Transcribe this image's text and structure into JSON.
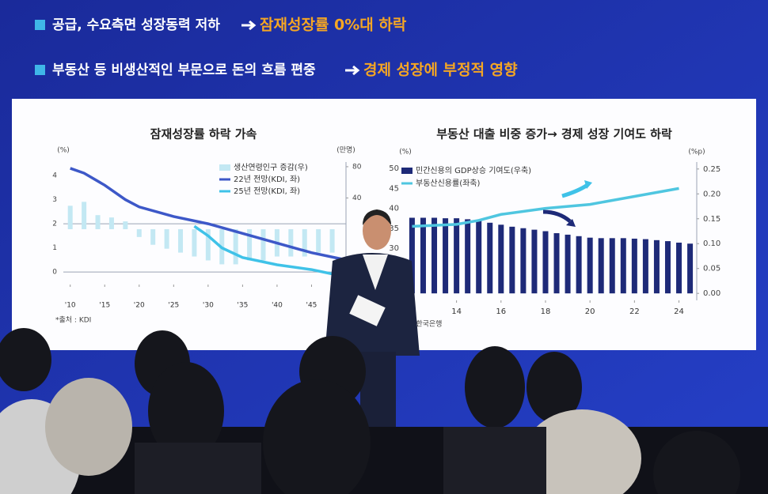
{
  "bullets": [
    {
      "text": "공급, 수요측면 성장동력 저하",
      "highlight": "잠재성장률 0%대 하락"
    },
    {
      "text": "부동산 등 비생산적인 부문으로 돈의 흐름 편중",
      "highlight": "경제 성장에 부정적 영향"
    }
  ],
  "chart_data": [
    {
      "type": "combo",
      "title": "잠재성장률 하락 가속",
      "ylabel": "(%)",
      "y2label": "(만명)",
      "source": "*출처 : KDI",
      "xlim": [
        2009,
        2050
      ],
      "xticks": [
        {
          "value": 2010,
          "label": "'10"
        },
        {
          "value": 2015,
          "label": "'15"
        },
        {
          "value": 2020,
          "label": "'20"
        },
        {
          "value": 2025,
          "label": "'25"
        },
        {
          "value": 2030,
          "label": "'30"
        },
        {
          "value": 2035,
          "label": "'35"
        },
        {
          "value": 2040,
          "label": "'40"
        },
        {
          "value": 2045,
          "label": "'45"
        }
      ],
      "ylim": [
        -0.52,
        4.56
      ],
      "yticks": [
        0,
        1,
        2,
        3,
        4
      ],
      "y2lim": [
        -70.9,
        86
      ],
      "y2ticks": [
        40,
        80
      ],
      "series": [
        {
          "name": "생산연령인구 증감(우)",
          "type": "bar",
          "axis": "y2",
          "color": "#c3e8f3",
          "x": [
            2010,
            2012,
            2014,
            2016,
            2018,
            2020,
            2022,
            2024,
            2026,
            2028,
            2030,
            2032,
            2034,
            2036,
            2038,
            2040,
            2042,
            2044,
            2046,
            2048
          ],
          "values": [
            30,
            35,
            18,
            15,
            10,
            -10,
            -20,
            -25,
            -30,
            -35,
            -40,
            -45,
            -45,
            -40,
            -40,
            -35,
            -35,
            -35,
            -30,
            -30
          ]
        },
        {
          "name": "22년 전망(KDI, 좌)",
          "type": "line",
          "color": "#3d58c8",
          "x": [
            2010,
            2012,
            2015,
            2018,
            2020,
            2025,
            2030,
            2035,
            2040,
            2045,
            2050
          ],
          "values": [
            4.3,
            4.1,
            3.6,
            3.0,
            2.7,
            2.3,
            2.0,
            1.6,
            1.2,
            0.8,
            0.5
          ]
        },
        {
          "name": "25년 전망(KDI, 좌)",
          "type": "line",
          "color": "#3fc2e8",
          "x": [
            2028,
            2030,
            2032,
            2035,
            2040,
            2045,
            2050
          ],
          "values": [
            1.9,
            1.5,
            1.0,
            0.6,
            0.3,
            0.1,
            -0.2
          ]
        }
      ]
    },
    {
      "type": "combo",
      "title": "부동산 대출 비중 증가→ 경제 성장 기여도 하락",
      "ylabel": "(%)",
      "y2label": "(%p)",
      "source": "출처 : 한국은행",
      "xlim": [
        2011.7,
        2024.8
      ],
      "xticks": [
        {
          "value": 2014,
          "label": "14"
        },
        {
          "value": 2016,
          "label": "16"
        },
        {
          "value": 2018,
          "label": "18"
        },
        {
          "value": 2020,
          "label": "20"
        },
        {
          "value": 2022,
          "label": "22"
        },
        {
          "value": 2024,
          "label": "24"
        }
      ],
      "ylim": [
        17.0,
        51.6
      ],
      "yticks": [
        30,
        35,
        40,
        45,
        50
      ],
      "y2lim": [
        -0.014,
        0.264
      ],
      "y2ticks": [
        {
          "value": 0,
          "label": "0.00"
        },
        {
          "value": 0.05,
          "label": "0.05"
        },
        {
          "value": 0.1,
          "label": "0.10"
        },
        {
          "value": 0.15,
          "label": "0.15"
        },
        {
          "value": 0.2,
          "label": "0.20"
        },
        {
          "value": 0.25,
          "label": "0.25"
        }
      ],
      "series": [
        {
          "name": "민간신용의 GDP상승 기여도(우축)",
          "type": "bar",
          "axis": "y2",
          "color": "#1e2a78",
          "x": [
            2012,
            2012.5,
            2013,
            2013.5,
            2014,
            2014.5,
            2015,
            2015.5,
            2016,
            2016.5,
            2017,
            2017.5,
            2018,
            2018.5,
            2019,
            2019.5,
            2020,
            2020.5,
            2021,
            2021.5,
            2022,
            2022.5,
            2023,
            2023.5,
            2024,
            2024.5
          ],
          "values": [
            0.152,
            0.152,
            0.152,
            0.151,
            0.151,
            0.149,
            0.146,
            0.142,
            0.138,
            0.134,
            0.131,
            0.128,
            0.125,
            0.121,
            0.118,
            0.115,
            0.112,
            0.111,
            0.111,
            0.111,
            0.11,
            0.109,
            0.107,
            0.105,
            0.102,
            0.1
          ]
        },
        {
          "name": "부동산신용률(좌축)",
          "type": "line",
          "color": "#4fc6e0",
          "x": [
            2012,
            2014,
            2015,
            2016,
            2018,
            2020,
            2022,
            2024
          ],
          "values": [
            35.5,
            36,
            37,
            38.5,
            40,
            41,
            43,
            45
          ]
        }
      ]
    }
  ]
}
